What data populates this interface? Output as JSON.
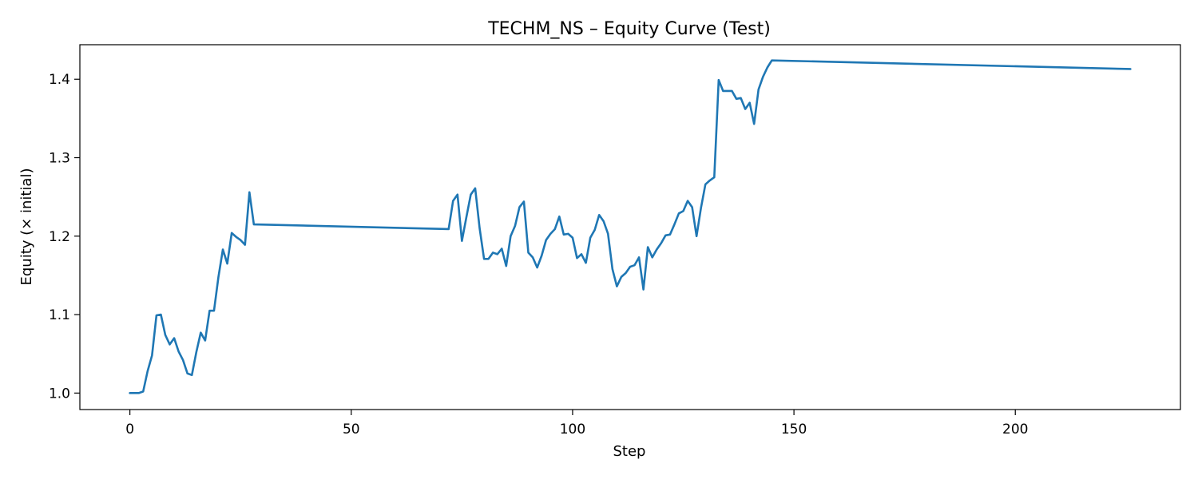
{
  "chart_data": {
    "type": "line",
    "title": "TECHM_NS – Equity Curve (Test)",
    "xlabel": "Step",
    "ylabel": "Equity (× initial)",
    "xlim": [
      -11.3,
      237.3
    ],
    "ylim": [
      0.979,
      1.444
    ],
    "xticks": [
      0,
      50,
      100,
      150,
      200
    ],
    "yticks": [
      1.0,
      1.1,
      1.2,
      1.3,
      1.4
    ],
    "xtick_labels": [
      "0",
      "50",
      "100",
      "150",
      "200"
    ],
    "ytick_labels": [
      "1.0",
      "1.1",
      "1.2",
      "1.3",
      "1.4"
    ],
    "grid": false,
    "legend": "none",
    "series": [
      {
        "color": "#1f77b4",
        "x": [
          0,
          1,
          2,
          3,
          4,
          5,
          6,
          7,
          8,
          9,
          10,
          11,
          12,
          13,
          14,
          15,
          16,
          17,
          18,
          19,
          20,
          21,
          22,
          23,
          24,
          25,
          26,
          27,
          28,
          72,
          73,
          74,
          75,
          76,
          77,
          78,
          79,
          80,
          81,
          82,
          83,
          84,
          85,
          86,
          87,
          88,
          89,
          90,
          91,
          92,
          93,
          94,
          95,
          96,
          97,
          98,
          99,
          100,
          101,
          102,
          103,
          104,
          105,
          106,
          107,
          108,
          109,
          110,
          111,
          112,
          113,
          114,
          115,
          116,
          117,
          118,
          119,
          120,
          121,
          122,
          123,
          124,
          125,
          126,
          127,
          128,
          129,
          130,
          131,
          132,
          133,
          134,
          135,
          136,
          137,
          138,
          139,
          140,
          141,
          142,
          143,
          144,
          145,
          226
        ],
        "y": [
          1.0,
          1.0,
          1.0,
          1.002,
          1.028,
          1.048,
          1.099,
          1.1,
          1.074,
          1.062,
          1.07,
          1.053,
          1.042,
          1.025,
          1.023,
          1.052,
          1.077,
          1.067,
          1.105,
          1.105,
          1.148,
          1.183,
          1.165,
          1.204,
          1.199,
          1.195,
          1.189,
          1.256,
          1.215,
          1.209,
          1.245,
          1.253,
          1.194,
          1.224,
          1.253,
          1.261,
          1.21,
          1.171,
          1.171,
          1.179,
          1.177,
          1.184,
          1.162,
          1.2,
          1.213,
          1.237,
          1.244,
          1.179,
          1.173,
          1.16,
          1.175,
          1.195,
          1.203,
          1.209,
          1.225,
          1.202,
          1.203,
          1.198,
          1.172,
          1.177,
          1.166,
          1.198,
          1.208,
          1.227,
          1.219,
          1.203,
          1.158,
          1.136,
          1.148,
          1.153,
          1.161,
          1.163,
          1.173,
          1.132,
          1.186,
          1.173,
          1.183,
          1.191,
          1.201,
          1.202,
          1.215,
          1.229,
          1.232,
          1.245,
          1.237,
          1.2,
          1.236,
          1.266,
          1.271,
          1.275,
          1.399,
          1.385,
          1.385,
          1.385,
          1.375,
          1.376,
          1.362,
          1.37,
          1.343,
          1.387,
          1.403,
          1.415,
          1.424,
          1.413
        ]
      }
    ]
  }
}
